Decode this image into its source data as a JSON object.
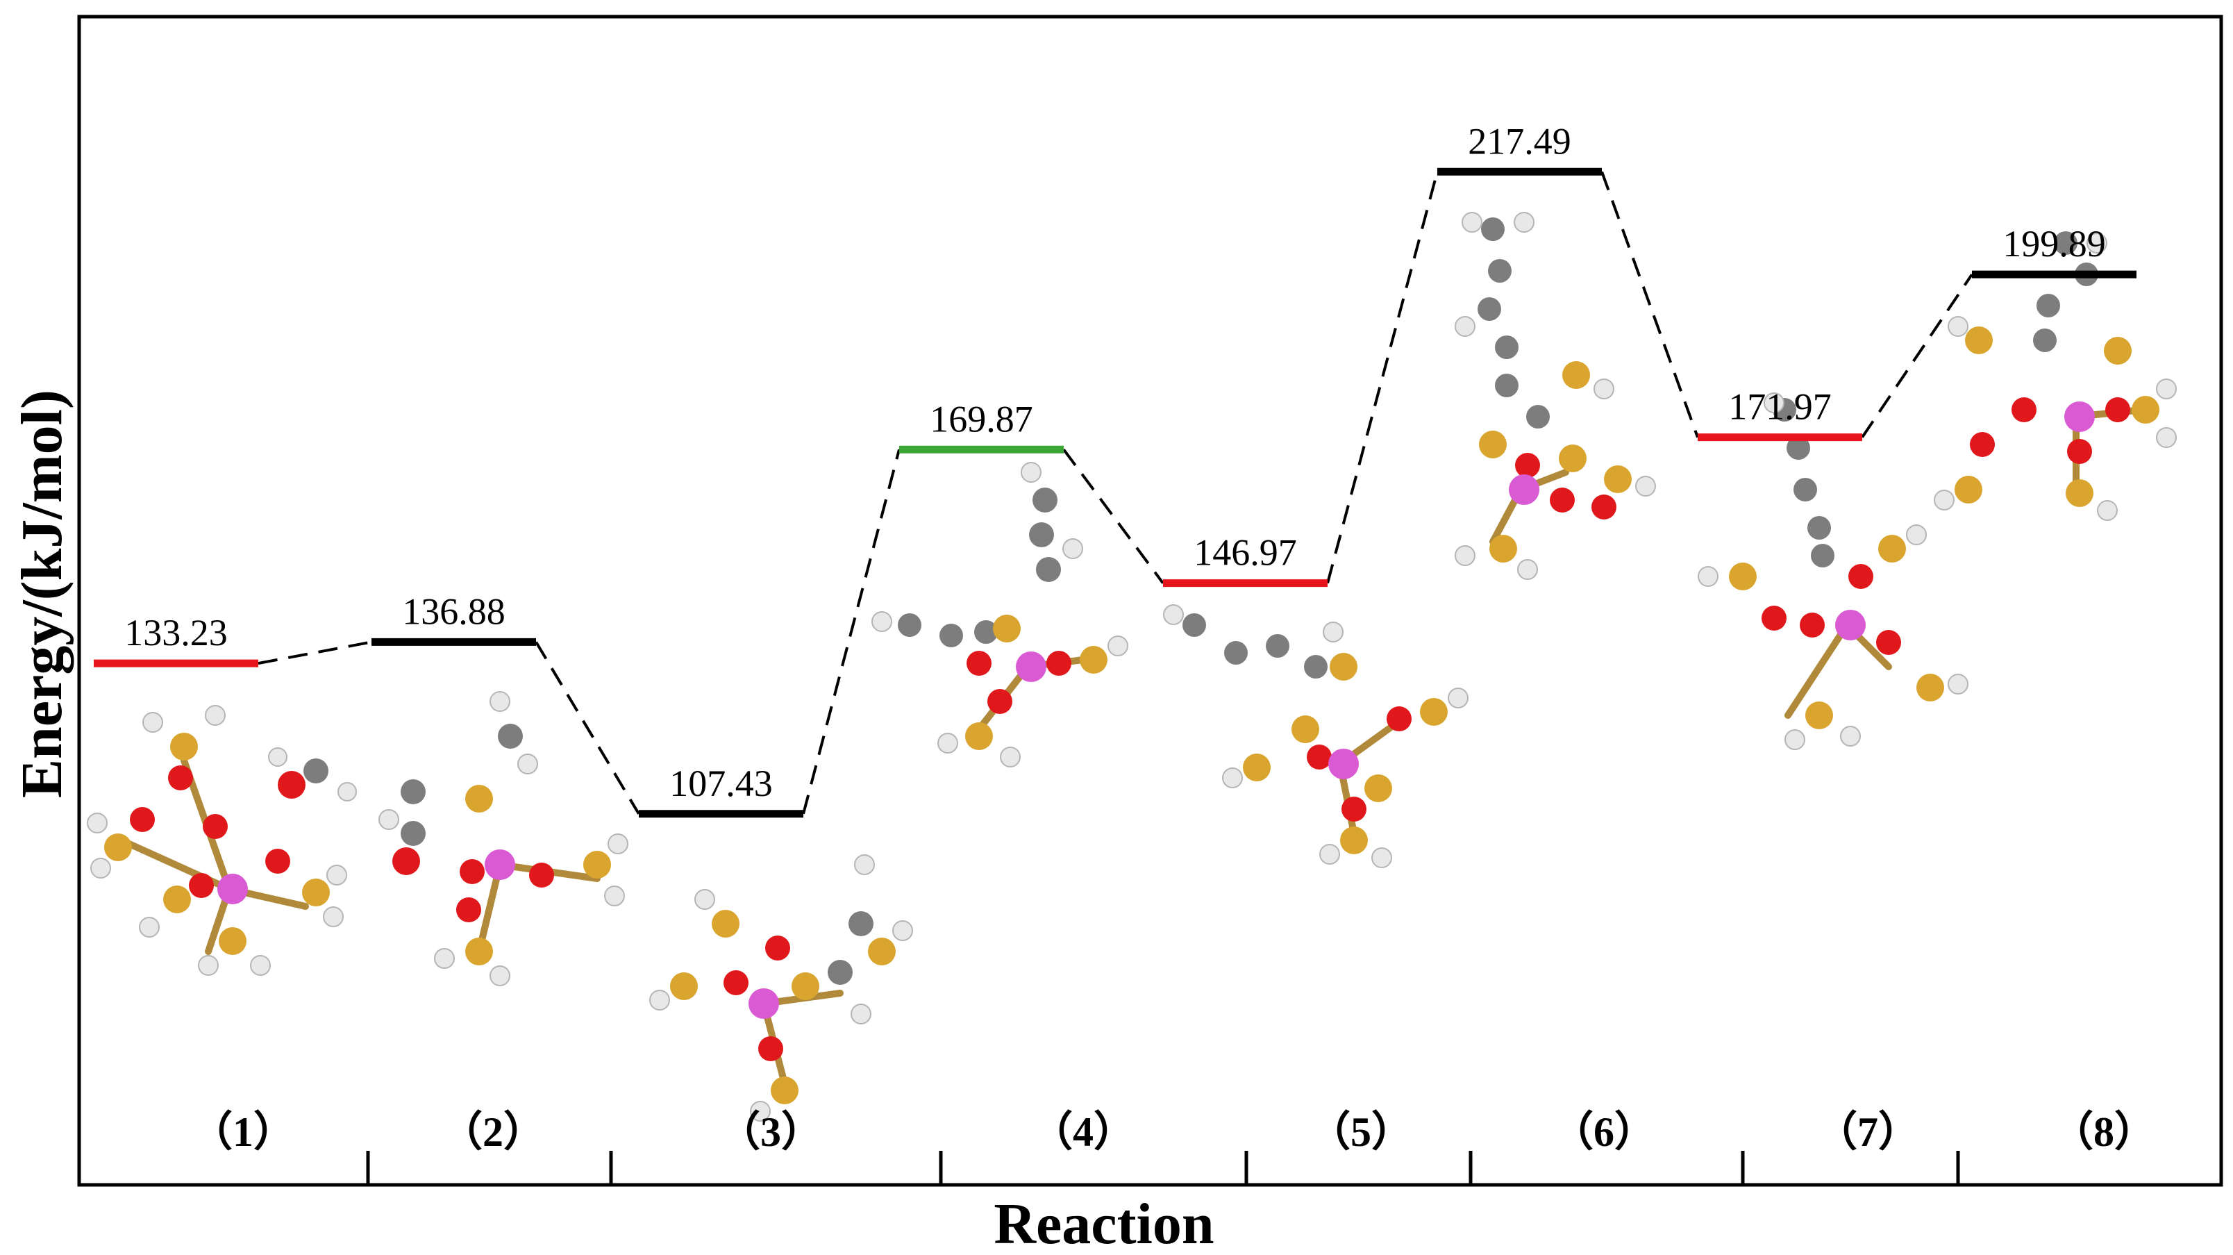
{
  "chart_data": {
    "type": "energy-level-diagram",
    "title": "",
    "xlabel": "Reaction",
    "ylabel": "Energy/(kJ/mol)",
    "ylim": [
      60,
      250
    ],
    "grid": false,
    "categories": [
      "（1）",
      "（2）",
      "（3）",
      "（4）",
      "（5）",
      "（6）",
      "（7）",
      "（8）"
    ],
    "levels": [
      {
        "step": 1,
        "value": 133.23,
        "label": "133.23",
        "color": "#e8141c"
      },
      {
        "step": 2,
        "value": 136.88,
        "label": "136.88",
        "color": "#000000"
      },
      {
        "step": 3,
        "value": 107.43,
        "label": "107.43",
        "color": "#000000"
      },
      {
        "step": 4,
        "value": 169.87,
        "label": "169.87",
        "color": "#3aa635"
      },
      {
        "step": 5,
        "value": 146.97,
        "label": "146.97",
        "color": "#e8141c"
      },
      {
        "step": 6,
        "value": 217.49,
        "label": "217.49",
        "color": "#000000"
      },
      {
        "step": 7,
        "value": 171.97,
        "label": "171.97",
        "color": "#e8141c"
      },
      {
        "step": 8,
        "value": 199.89,
        "label": "199.89",
        "color": "#000000"
      }
    ],
    "connector_style": "dashed"
  }
}
